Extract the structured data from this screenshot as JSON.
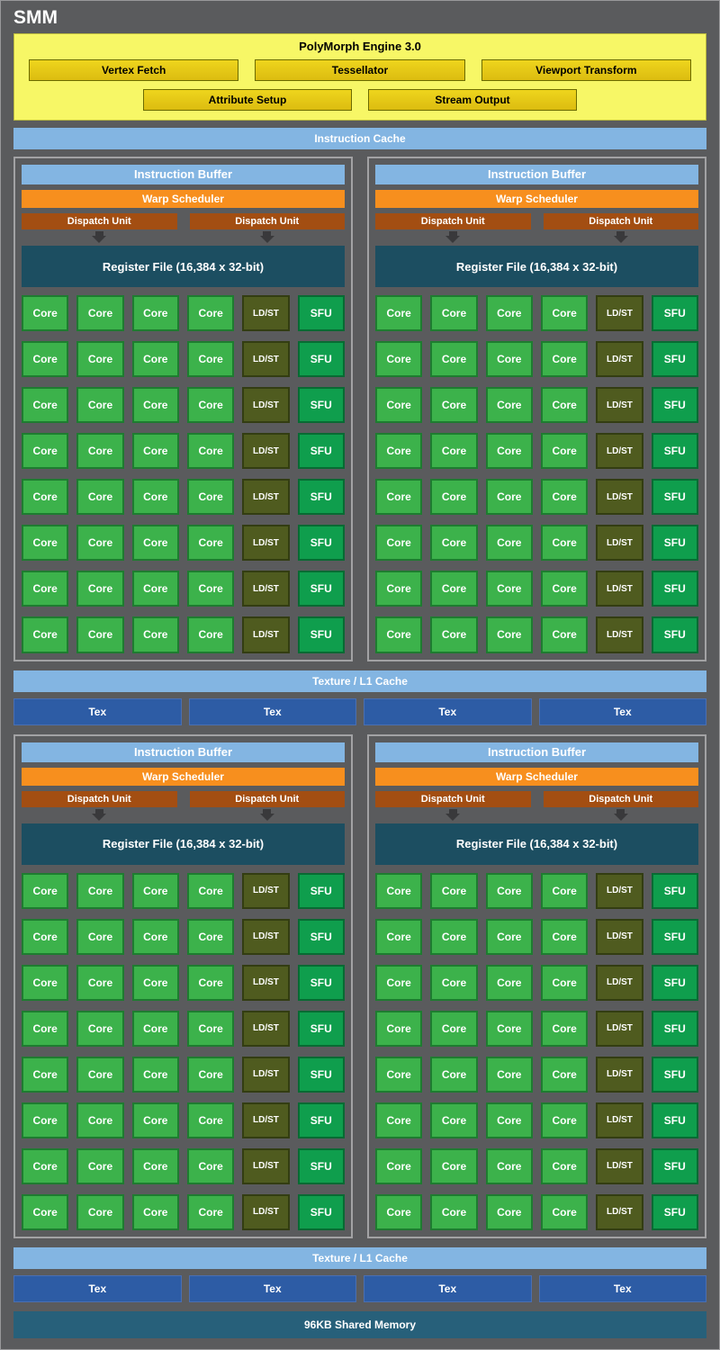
{
  "title": "SMM",
  "colors": {
    "bg": "#5a5b5d",
    "yellow_bg": "#f7f766",
    "yellow_box": "#eed51d",
    "light_blue": "#83b5e2",
    "orange": "#f78f1e",
    "dispatch": "#a34e12",
    "regfile": "#1c4e61",
    "core": "#3cb24b",
    "core_border": "#1e7c30",
    "ldst": "#4f5b1f",
    "ldst_border": "#333d12",
    "sfu": "#0f9e4d",
    "sfu_border": "#086b33",
    "tex": "#2d5ca5",
    "shared": "#27607a"
  },
  "polymorph": {
    "title": "PolyMorph Engine 3.0",
    "row1": [
      "Vertex Fetch",
      "Tessellator",
      "Viewport Transform"
    ],
    "row2": [
      "Attribute Setup",
      "Stream Output"
    ]
  },
  "labels": {
    "instruction_cache": "Instruction Cache",
    "texture_cache": "Texture / L1 Cache",
    "shared_memory": "96KB Shared Memory",
    "tex": "Tex"
  },
  "block": {
    "instruction_buffer": "Instruction Buffer",
    "warp_scheduler": "Warp Scheduler",
    "dispatch_unit": "Dispatch Unit",
    "dispatch_count": 2,
    "register_file": "Register File (16,384 x 32-bit)",
    "grid_rows": 8,
    "row_cells": [
      {
        "label": "Core",
        "type": "core"
      },
      {
        "label": "Core",
        "type": "core"
      },
      {
        "label": "Core",
        "type": "core"
      },
      {
        "label": "Core",
        "type": "core"
      },
      {
        "label": "LD/ST",
        "type": "ldst"
      },
      {
        "label": "SFU",
        "type": "sfu"
      }
    ]
  },
  "blocks_per_pair": 2,
  "tex_per_row": 4
}
